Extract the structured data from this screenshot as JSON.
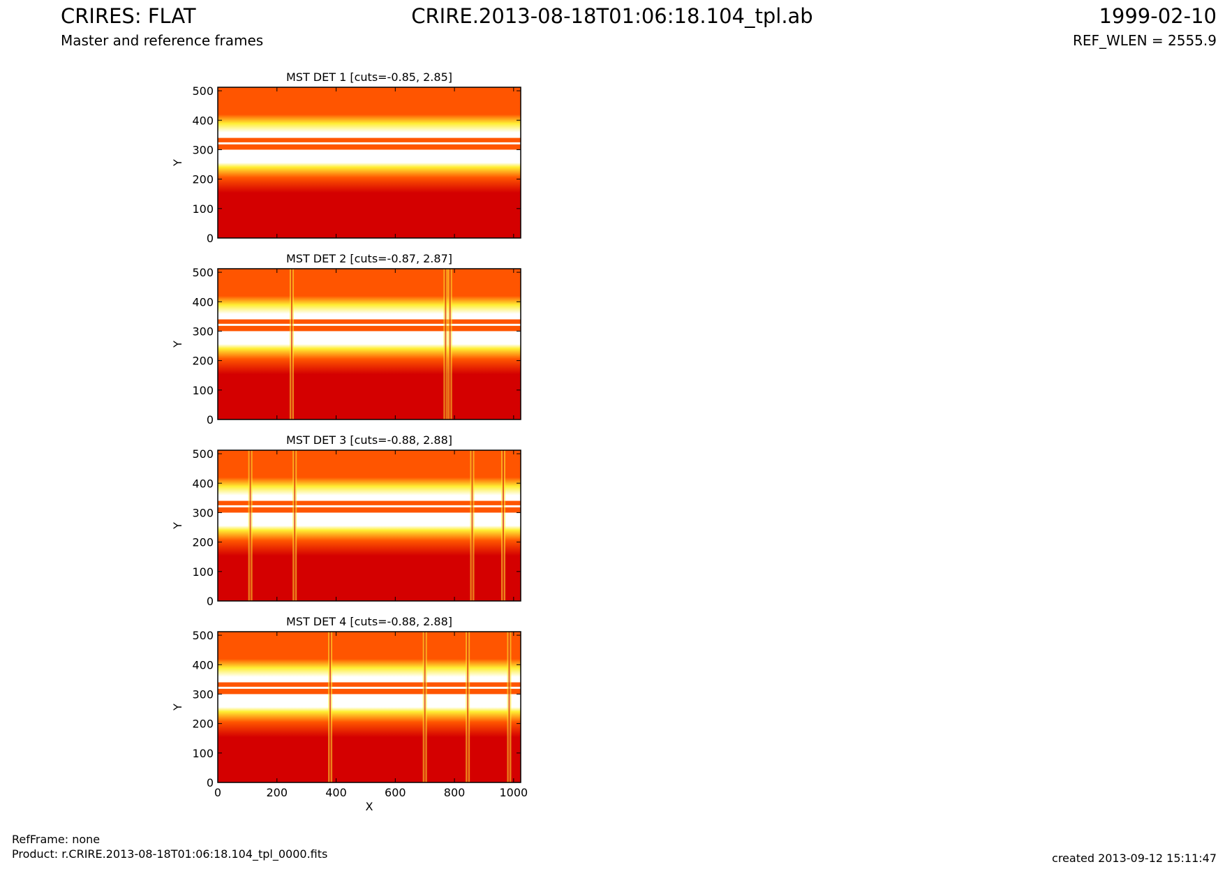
{
  "header": {
    "left_title": "CRIRES: FLAT",
    "left_subtitle": "Master and reference frames",
    "center_title": "CRIRE.2013-08-18T01:06:18.104_tpl.ab",
    "right_title": "1999-02-10",
    "right_subtitle": "REF_WLEN = 2555.9"
  },
  "footer": {
    "refframe": "RefFrame: none",
    "product": "Product: r.CRIRE.2013-08-18T01:06:18.104_tpl_0000.fits",
    "created": "created 2013-09-12 15:11:47"
  },
  "colors": {
    "low": "#d40000",
    "mid": "#ff5500",
    "high_yellow": "#ffee33",
    "saturated": "#ffffff"
  },
  "chart_data": [
    {
      "type": "heatmap",
      "title": "MST DET 1 [cuts=-0.85, 2.85]",
      "xlabel": "",
      "ylabel": "Y",
      "xlim": [
        0,
        1024
      ],
      "ylim": [
        0,
        512
      ],
      "xticks": [
        "0",
        "200",
        "400",
        "600",
        "800",
        "1000"
      ],
      "yticks": [
        "0",
        "100",
        "200",
        "300",
        "400",
        "500"
      ],
      "x_tick_values": [
        0,
        200,
        400,
        600,
        800,
        1000
      ],
      "y_tick_values": [
        0,
        100,
        200,
        300,
        400,
        500
      ],
      "colormap": "hot",
      "cuts": [
        -0.85,
        2.85
      ],
      "bright_columns": []
    },
    {
      "type": "heatmap",
      "title": "MST DET 2 [cuts=-0.87, 2.87]",
      "xlabel": "",
      "ylabel": "Y",
      "xlim": [
        0,
        1024
      ],
      "ylim": [
        0,
        512
      ],
      "xticks": [
        "0",
        "200",
        "400",
        "600",
        "800",
        "1000"
      ],
      "yticks": [
        "0",
        "100",
        "200",
        "300",
        "400",
        "500"
      ],
      "x_tick_values": [
        0,
        200,
        400,
        600,
        800,
        1000
      ],
      "y_tick_values": [
        0,
        100,
        200,
        300,
        400,
        500
      ],
      "colormap": "hot",
      "cuts": [
        -0.87,
        2.87
      ],
      "bright_columns": [
        250,
        770,
        785
      ]
    },
    {
      "type": "heatmap",
      "title": "MST DET 3 [cuts=-0.88, 2.88]",
      "xlabel": "",
      "ylabel": "Y",
      "xlim": [
        0,
        1024
      ],
      "ylim": [
        0,
        512
      ],
      "xticks": [
        "0",
        "200",
        "400",
        "600",
        "800",
        "1000"
      ],
      "yticks": [
        "0",
        "100",
        "200",
        "300",
        "400",
        "500"
      ],
      "x_tick_values": [
        0,
        200,
        400,
        600,
        800,
        1000
      ],
      "y_tick_values": [
        0,
        100,
        200,
        300,
        400,
        500
      ],
      "colormap": "hot",
      "cuts": [
        -0.88,
        2.88
      ],
      "bright_columns": [
        110,
        260,
        860,
        965
      ]
    },
    {
      "type": "heatmap",
      "title": "MST DET 4 [cuts=-0.88, 2.88]",
      "xlabel": "X",
      "ylabel": "Y",
      "xlim": [
        0,
        1024
      ],
      "ylim": [
        0,
        512
      ],
      "xticks": [
        "0",
        "200",
        "400",
        "600",
        "800",
        "1000"
      ],
      "yticks": [
        "0",
        "100",
        "200",
        "300",
        "400",
        "500"
      ],
      "x_tick_values": [
        0,
        200,
        400,
        600,
        800,
        1000
      ],
      "y_tick_values": [
        0,
        100,
        200,
        300,
        400,
        500
      ],
      "colormap": "hot",
      "cuts": [
        -0.88,
        2.88
      ],
      "bright_columns": [
        380,
        700,
        845,
        985
      ]
    }
  ]
}
